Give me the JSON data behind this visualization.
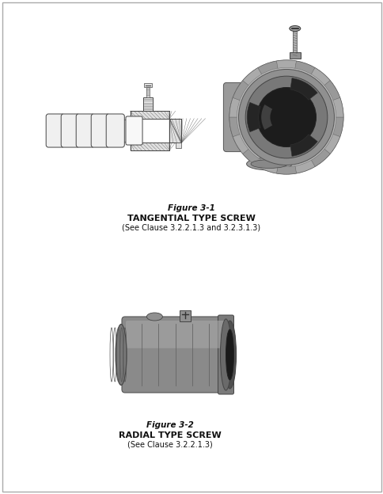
{
  "fig1_label_line1": "Figure 3-1",
  "fig1_label_line2": "TANGENTIAL TYPE SCREW",
  "fig1_label_line3": "(See Clause 3.2.2.1.3 and 3.2.3.1.3)",
  "fig2_label_line1": "Figure 3-2",
  "fig2_label_line2": "RADIAL TYPE SCREW",
  "fig2_label_line3": "(See Clause 3.2.2.1.3)",
  "bg_color": "#ffffff",
  "border_color": "#aaaaaa",
  "text_color": "#111111",
  "label_fontsize": 7.5,
  "bold_fontsize": 8.0
}
